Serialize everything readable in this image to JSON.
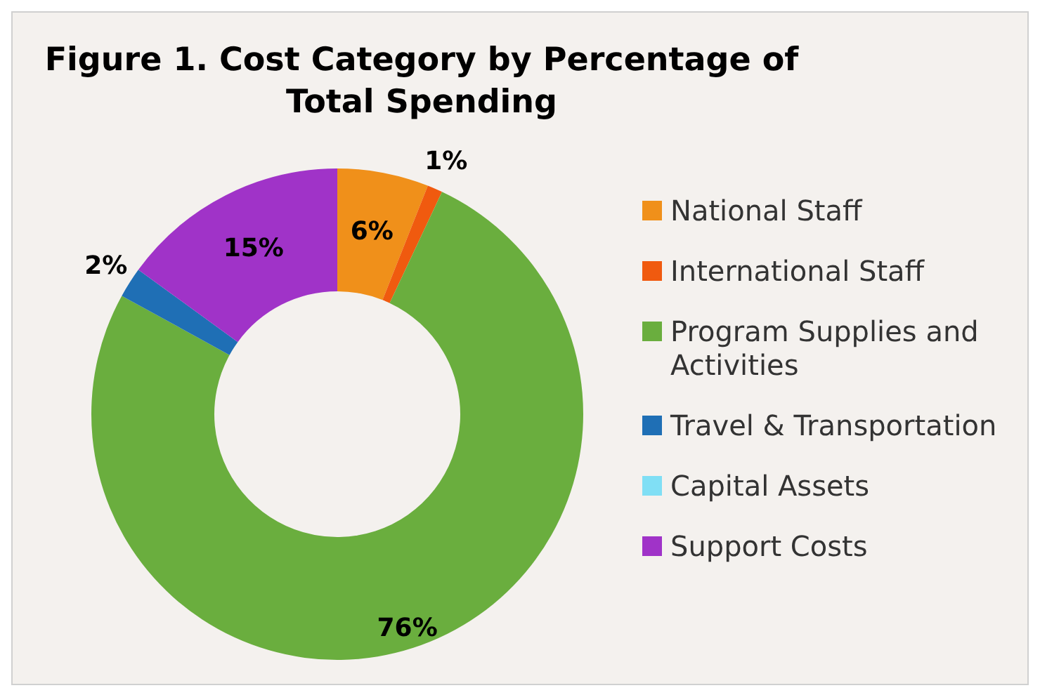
{
  "chart_data": {
    "type": "donut",
    "title": "Figure 1. Cost Category by Percentage of Total Spending",
    "categories": [
      "National Staff",
      "International Staff",
      "Program Supplies and Activities",
      "Travel & Transportation",
      "Capital Assets",
      "Support Costs"
    ],
    "values": [
      6,
      1,
      76,
      2,
      0,
      15
    ],
    "colors": [
      "#f0901a",
      "#f05a0f",
      "#6aae3e",
      "#1f6fb5",
      "#80dff5",
      "#a033c8"
    ],
    "value_labels": [
      "6%",
      "1%",
      "76%",
      "2%",
      null,
      "15%"
    ],
    "legend": "right"
  }
}
